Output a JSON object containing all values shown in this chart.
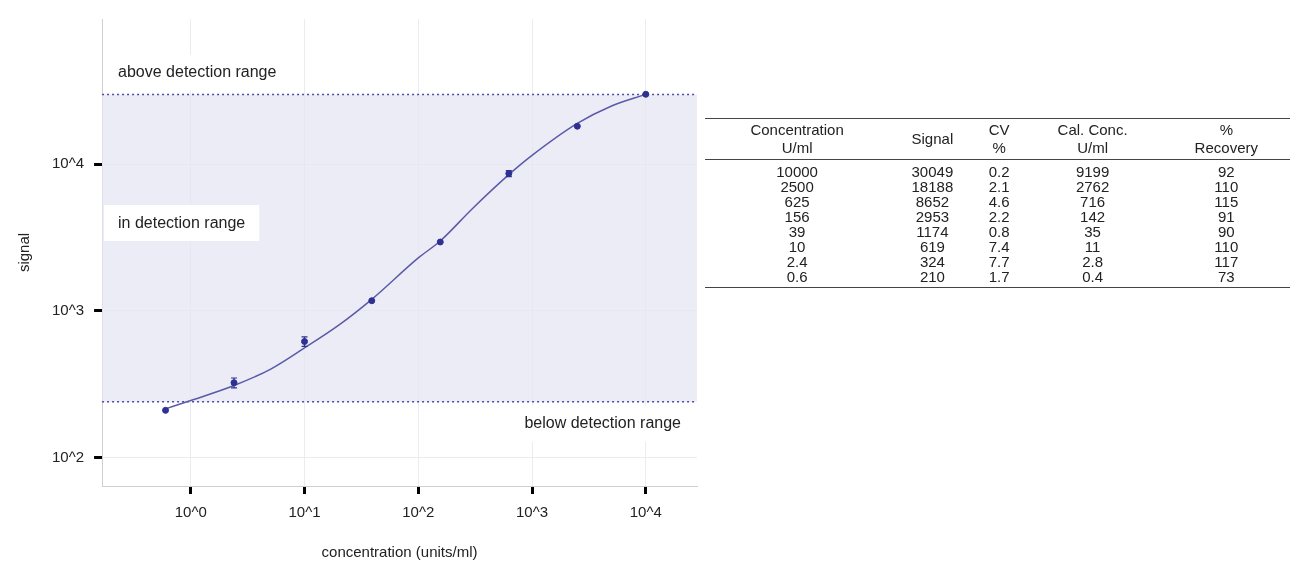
{
  "chart_data": [
    {
      "type": "scatter",
      "xlabel": "concentration (units/ml)",
      "ylabel": "signal",
      "log": "xy",
      "grid": true,
      "legend": false,
      "marker": "circle",
      "xlim": [
        0.166,
        28200
      ],
      "ylim": [
        64,
        98000
      ],
      "xticks": [
        {
          "value": 1,
          "label": "10^0"
        },
        {
          "value": 10,
          "label": "10^1"
        },
        {
          "value": 100,
          "label": "10^2"
        },
        {
          "value": 1000,
          "label": "10^3"
        },
        {
          "value": 10000,
          "label": "10^4"
        }
      ],
      "yticks": [
        {
          "value": 100,
          "label": "10^2"
        },
        {
          "value": 1000,
          "label": "10^3"
        },
        {
          "value": 10000,
          "label": "10^4"
        }
      ],
      "bands": [
        {
          "axis": "y",
          "from": 240,
          "to": 30000,
          "label": "in detection range",
          "color": "#e6e6f4"
        }
      ],
      "ref_lines": [
        {
          "axis": "y",
          "value": 30000,
          "label": "above detection range",
          "color": "#4b4ba8",
          "line_style": "dotted"
        },
        {
          "axis": "y",
          "value": 240,
          "label": "below detection range",
          "color": "#4b4ba8",
          "line_style": "dotted"
        }
      ],
      "series": [
        {
          "color": "#2e3192",
          "x": [
            0.6,
            2.4,
            10,
            39,
            156,
            625,
            2500,
            10000
          ],
          "values": [
            210,
            324,
            619,
            1174,
            2953,
            8652,
            18188,
            30049
          ],
          "errors": [
            null,
            25,
            46,
            null,
            null,
            400,
            null,
            null
          ]
        },
        {
          "type": "line",
          "color": "#5a5aa8",
          "marker": "none",
          "x": [
            0.6,
            1,
            2.4,
            5,
            10,
            20,
            39,
            100,
            156,
            300,
            625,
            1000,
            2500,
            5000,
            10000
          ],
          "values": [
            215,
            245,
            310,
            400,
            560,
            800,
            1200,
            2300,
            3000,
            5000,
            8500,
            11500,
            19000,
            25000,
            30000
          ]
        }
      ]
    },
    {
      "type": "other",
      "categories": [
        "Concentration\nU/ml",
        "Signal",
        "CV\n%",
        "Cal. Conc.\nU/ml",
        "%\nRecovery"
      ],
      "annotations": [
        "10000",
        "30049",
        "0.2",
        "9199",
        "92",
        "2500",
        "18188",
        "2.1",
        "2762",
        "110",
        "625",
        "8652",
        "4.6",
        "716",
        "115",
        "156",
        "2953",
        "2.2",
        "142",
        "91",
        "39",
        "1174",
        "0.8",
        "35",
        "90",
        "10",
        "619",
        "7.4",
        "11",
        "110",
        "2.4",
        "324",
        "7.7",
        "2.8",
        "117",
        "0.6",
        "210",
        "1.7",
        "0.4",
        "73"
      ]
    }
  ]
}
